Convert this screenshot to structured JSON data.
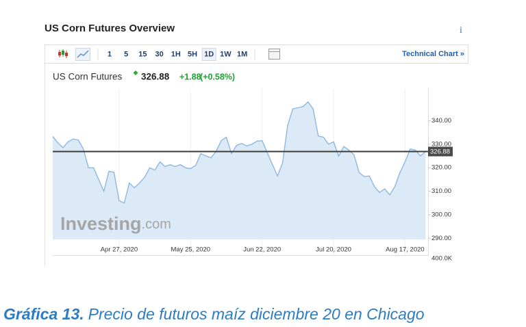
{
  "widget": {
    "title": "US Corn Futures Overview",
    "info": "i",
    "intervals": [
      "1",
      "5",
      "15",
      "30",
      "1H",
      "5H",
      "1D",
      "1W",
      "1M"
    ],
    "active_interval": 6,
    "technical_link": "Technical Chart »"
  },
  "chart_data": {
    "type": "area",
    "x": [
      "2020-04-01",
      "2020-04-03",
      "2020-04-05",
      "2020-04-07",
      "2020-04-09",
      "2020-04-11",
      "2020-04-13",
      "2020-04-15",
      "2020-04-17",
      "2020-04-19",
      "2020-04-21",
      "2020-04-23",
      "2020-04-25",
      "2020-04-27",
      "2020-04-29",
      "2020-05-01",
      "2020-05-03",
      "2020-05-05",
      "2020-05-07",
      "2020-05-09",
      "2020-05-11",
      "2020-05-13",
      "2020-05-15",
      "2020-05-17",
      "2020-05-19",
      "2020-05-21",
      "2020-05-23",
      "2020-05-25",
      "2020-05-27",
      "2020-05-29",
      "2020-05-31",
      "2020-06-02",
      "2020-06-04",
      "2020-06-06",
      "2020-06-08",
      "2020-06-10",
      "2020-06-12",
      "2020-06-14",
      "2020-06-16",
      "2020-06-18",
      "2020-06-20",
      "2020-06-22",
      "2020-06-24",
      "2020-06-26",
      "2020-06-28",
      "2020-06-30",
      "2020-07-02",
      "2020-07-04",
      "2020-07-06",
      "2020-07-08",
      "2020-07-10",
      "2020-07-12",
      "2020-07-14",
      "2020-07-16",
      "2020-07-18",
      "2020-07-20",
      "2020-07-22",
      "2020-07-24",
      "2020-07-26",
      "2020-07-28",
      "2020-07-30",
      "2020-08-01",
      "2020-08-03",
      "2020-08-05",
      "2020-08-07",
      "2020-08-09",
      "2020-08-11",
      "2020-08-13",
      "2020-08-15",
      "2020-08-17",
      "2020-08-19",
      "2020-08-21",
      "2020-08-23",
      "2020-08-25"
    ],
    "series": [
      {
        "name": "US Corn Futures",
        "color": "#8db8e0",
        "fill": "#dce9f6",
        "values": [
          333.3,
          330.6,
          328.5,
          331.0,
          332.2,
          331.8,
          328,
          320,
          320,
          315,
          310,
          318.5,
          318,
          306,
          305,
          313.5,
          311.5,
          313.5,
          316,
          320,
          319,
          322.5,
          320.5,
          321.3,
          320.5,
          321.3,
          320,
          319.6,
          321,
          326,
          325,
          324.2,
          327,
          331.5,
          333,
          326,
          329.5,
          330.3,
          329.3,
          330,
          331.3,
          331.5,
          326.5,
          321.5,
          316.5,
          322,
          338,
          345,
          345.5,
          346,
          348,
          345,
          333.5,
          333,
          330,
          331,
          325,
          329,
          327.5,
          325.5,
          318,
          316.2,
          316.5,
          312,
          309.5,
          311,
          308.5,
          312,
          318,
          322.5,
          328,
          327.5,
          325,
          326.88
        ]
      }
    ],
    "last": 326.88,
    "change": {
      "value": 1.88,
      "label": "+1.88"
    },
    "change_pct": {
      "value": 0.58,
      "label": "(+0.58%)"
    },
    "xlim": [
      "2020-04-01",
      "2020-08-26"
    ],
    "xticks": [
      {
        "value": "2020-04-27",
        "label": "Apr 27, 2020"
      },
      {
        "value": "2020-05-25",
        "label": "May 25, 2020"
      },
      {
        "value": "2020-06-22",
        "label": "Jun 22, 2020"
      },
      {
        "value": "2020-07-20",
        "label": "Jul 20, 2020"
      },
      {
        "value": "2020-08-17",
        "label": "Aug 17, 2020"
      }
    ],
    "ylim": [
      289.5,
      353.5
    ],
    "yticks": [
      {
        "value": 290,
        "label": "290.00"
      },
      {
        "value": 300,
        "label": "300.00"
      },
      {
        "value": 310,
        "label": "310.00"
      },
      {
        "value": 320,
        "label": "320.00"
      },
      {
        "value": 330,
        "label": "330.00"
      },
      {
        "value": 340,
        "label": "340.00"
      }
    ],
    "y2ticks": [
      {
        "value": 400000,
        "label": "400.0K"
      }
    ],
    "watermark": [
      "Investing",
      ".com"
    ]
  },
  "caption": {
    "label": "Gráfica 13.",
    "text": "Precio de futuros maíz diciembre 20 en Chicago"
  }
}
